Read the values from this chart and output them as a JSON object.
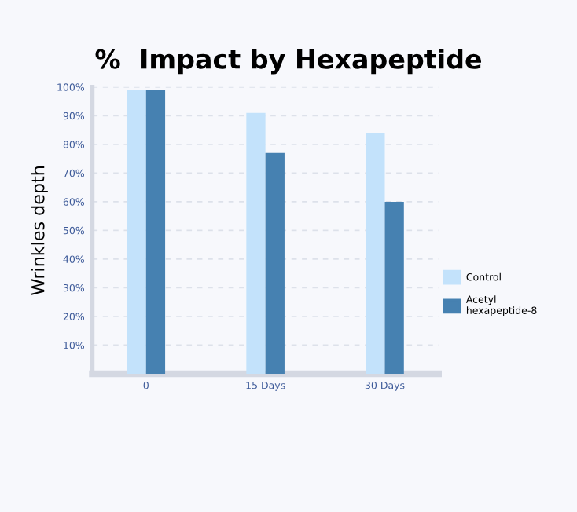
{
  "chart_data": {
    "type": "bar",
    "title": "%  Impact by Hexapeptide",
    "ylabel": "Wrinkles depth",
    "categories": [
      "0",
      "15 Days",
      "30 Days"
    ],
    "series": [
      {
        "name": "Control",
        "color": "#c3e2fb",
        "values": [
          99,
          91,
          84
        ]
      },
      {
        "name": "Acetyl\nhexapeptide-8",
        "color": "#4681b1",
        "values": [
          99,
          77,
          60
        ]
      }
    ],
    "ylim": [
      0,
      100
    ],
    "yticks": [
      {
        "value": 10,
        "label": "10%"
      },
      {
        "value": 20,
        "label": "20%"
      },
      {
        "value": 30,
        "label": "30%"
      },
      {
        "value": 40,
        "label": "40%"
      },
      {
        "value": 50,
        "label": "50%"
      },
      {
        "value": 60,
        "label": "60%"
      },
      {
        "value": 70,
        "label": "70%"
      },
      {
        "value": 80,
        "label": "80%"
      },
      {
        "value": 90,
        "label": "90%"
      },
      {
        "value": 100,
        "label": "100%"
      }
    ],
    "grid": "y",
    "legend": "right"
  }
}
